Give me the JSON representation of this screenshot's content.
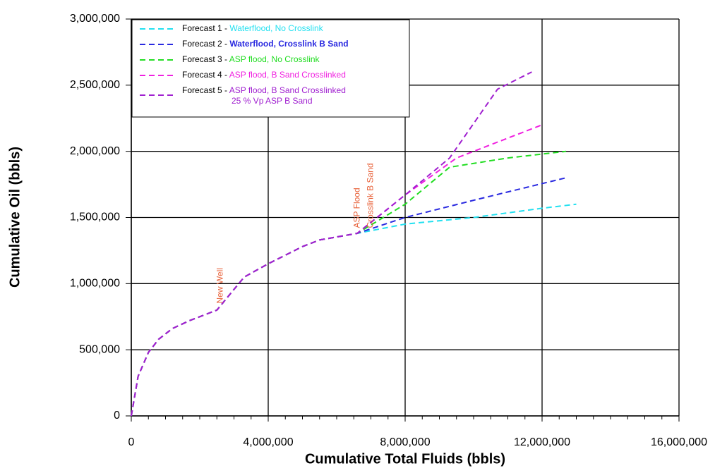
{
  "chart_data": {
    "type": "line",
    "xlabel": "Cumulative Total Fluids (bbls)",
    "ylabel": "Cumulative Oil (bbls)",
    "xlim": [
      0,
      16000000
    ],
    "ylim": [
      0,
      3000000
    ],
    "xticks": [
      0,
      {
        "value": 4000000,
        "label": "4,000,000"
      },
      {
        "value": 8000000,
        "label": "8,000,000"
      },
      {
        "value": 12000000,
        "label": "12,000,000"
      },
      {
        "value": 16000000,
        "label": "16,000,000"
      }
    ],
    "yticks": [
      0,
      {
        "value": 500000,
        "label": "500,000"
      },
      {
        "value": 1000000,
        "label": "1,000,000"
      },
      {
        "value": 1500000,
        "label": "1,500,000"
      },
      {
        "value": 2000000,
        "label": "2,000,000"
      },
      {
        "value": 2500000,
        "label": "2,500,000"
      },
      {
        "value": 3000000,
        "label": "3,000,000"
      }
    ],
    "grid": true,
    "legend": "upper left",
    "annotations": [
      {
        "text": "New Well",
        "x": 2600000,
        "y": 850000
      },
      {
        "text": "ASP Flood",
        "x": 6600000,
        "y": 1420000
      },
      {
        "text": "Crosslink B Sand",
        "x": 7000000,
        "y": 1420000
      }
    ],
    "series": [
      {
        "name": "Forecast 1 - Waterflood, No Crosslink",
        "color": "#22e0f0",
        "x": [
          0,
          200000,
          500000,
          800000,
          1200000,
          1700000,
          2500000,
          3300000,
          4000000,
          5000000,
          5500000,
          6600000,
          8000000,
          10000000,
          12000000,
          13000000
        ],
        "values": [
          0,
          300000,
          480000,
          580000,
          660000,
          720000,
          800000,
          1050000,
          1150000,
          1280000,
          1330000,
          1380000,
          1450000,
          1500000,
          1570000,
          1600000
        ]
      },
      {
        "name": "Forecast 2 - Waterflood, Crosslink B Sand",
        "color": "#2a2ae0",
        "x": [
          0,
          200000,
          500000,
          800000,
          1200000,
          1700000,
          2500000,
          3300000,
          4000000,
          5000000,
          5500000,
          6600000,
          8000000,
          10000000,
          12700000
        ],
        "values": [
          0,
          300000,
          480000,
          580000,
          660000,
          720000,
          800000,
          1050000,
          1150000,
          1280000,
          1330000,
          1380000,
          1500000,
          1630000,
          1800000
        ]
      },
      {
        "name": "Forecast 3 - ASP flood, No Crosslink",
        "color": "#22dd22",
        "x": [
          0,
          200000,
          500000,
          800000,
          1200000,
          1700000,
          2500000,
          3300000,
          4000000,
          5000000,
          5500000,
          6600000,
          8000000,
          9300000,
          11000000,
          12700000
        ],
        "values": [
          0,
          300000,
          480000,
          580000,
          660000,
          720000,
          800000,
          1050000,
          1150000,
          1280000,
          1330000,
          1380000,
          1600000,
          1880000,
          1950000,
          2000000
        ]
      },
      {
        "name": "Forecast 4 - ASP flood, B Sand Crosslinked",
        "color": "#f020e0",
        "x": [
          0,
          200000,
          500000,
          800000,
          1200000,
          1700000,
          2500000,
          3300000,
          4000000,
          5000000,
          5500000,
          6600000,
          8000000,
          9500000,
          12000000
        ],
        "values": [
          0,
          300000,
          480000,
          580000,
          660000,
          720000,
          800000,
          1050000,
          1150000,
          1280000,
          1330000,
          1380000,
          1670000,
          1950000,
          2200000
        ]
      },
      {
        "name": "Forecast 5 - ASP flood, B Sand Crosslinked",
        "name_line2": "25 % Vp ASP B Sand",
        "color": "#a020d0",
        "x": [
          0,
          200000,
          500000,
          800000,
          1200000,
          1700000,
          2500000,
          3300000,
          4000000,
          5000000,
          5500000,
          6600000,
          8000000,
          9300000,
          10700000,
          11700000
        ],
        "values": [
          0,
          300000,
          480000,
          580000,
          660000,
          720000,
          800000,
          1050000,
          1150000,
          1280000,
          1330000,
          1380000,
          1670000,
          1950000,
          2470000,
          2600000
        ]
      }
    ]
  }
}
